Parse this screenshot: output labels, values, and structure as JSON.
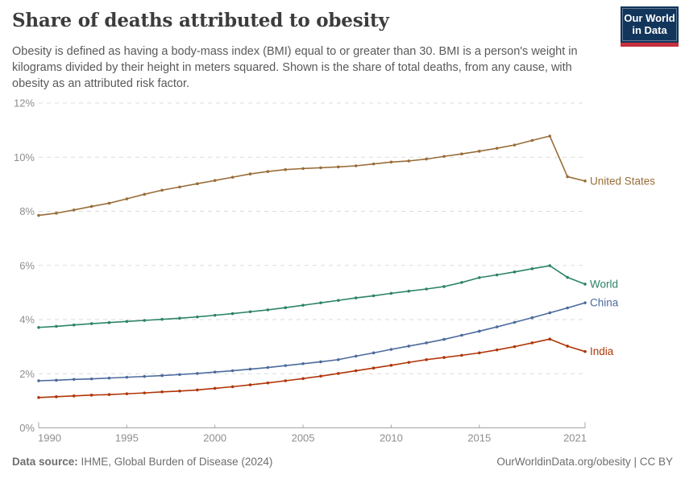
{
  "header": {
    "title": "Share of deaths attributed to obesity",
    "subtitle": "Obesity is defined as having a body-mass index (BMI) equal to or greater than 30. BMI is a person's weight in kilograms divided by their height in meters squared. Shown is the share of total deaths, from any cause, with obesity as an attributed risk factor."
  },
  "logo": {
    "line1": "Our World",
    "line2": "in Data",
    "bg_color": "#12355B",
    "stripe_color": "#C5303C"
  },
  "footer": {
    "source_label": "Data source:",
    "source_text": " IHME, Global Burden of Disease (2024)",
    "right_text": "OurWorldinData.org/obesity | CC BY"
  },
  "chart_data": {
    "type": "line",
    "title": "Share of deaths attributed to obesity",
    "xlabel": "",
    "ylabel": "",
    "xlim": [
      1990,
      2021
    ],
    "ylim": [
      0,
      12
    ],
    "grid": "horizontal-dashed",
    "grid_color": "#dbdbdb",
    "axis_text_color": "#8e8e8e",
    "axis_line_color": "#a5a5a5",
    "legend_position": "line-end-labels-right",
    "xticks": [
      1990,
      1995,
      2000,
      2005,
      2010,
      2015,
      2021
    ],
    "yticks": [
      {
        "value": 0,
        "label": "0%"
      },
      {
        "value": 2,
        "label": "2%"
      },
      {
        "value": 4,
        "label": "4%"
      },
      {
        "value": 6,
        "label": "6%"
      },
      {
        "value": 8,
        "label": "8%"
      },
      {
        "value": 10,
        "label": "10%"
      },
      {
        "value": 12,
        "label": "12%"
      }
    ],
    "x": [
      1990,
      1991,
      1992,
      1993,
      1994,
      1995,
      1996,
      1997,
      1998,
      1999,
      2000,
      2001,
      2002,
      2003,
      2004,
      2005,
      2006,
      2007,
      2008,
      2009,
      2010,
      2011,
      2012,
      2013,
      2014,
      2015,
      2016,
      2017,
      2018,
      2019,
      2020,
      2021
    ],
    "series": [
      {
        "name": "United States",
        "color": "#996D39",
        "values": [
          7.85,
          7.93,
          8.05,
          8.18,
          8.3,
          8.46,
          8.63,
          8.78,
          8.9,
          9.02,
          9.14,
          9.26,
          9.38,
          9.47,
          9.54,
          9.58,
          9.61,
          9.64,
          9.68,
          9.75,
          9.82,
          9.86,
          9.93,
          10.03,
          10.12,
          10.22,
          10.33,
          10.45,
          10.62,
          10.78,
          9.28,
          9.12
        ]
      },
      {
        "name": "World",
        "color": "#2C8465",
        "values": [
          3.71,
          3.75,
          3.8,
          3.85,
          3.89,
          3.93,
          3.97,
          4.01,
          4.05,
          4.1,
          4.16,
          4.22,
          4.29,
          4.36,
          4.44,
          4.53,
          4.62,
          4.71,
          4.8,
          4.88,
          4.97,
          5.05,
          5.13,
          5.22,
          5.37,
          5.55,
          5.65,
          5.76,
          5.88,
          5.99,
          5.56,
          5.31
        ]
      },
      {
        "name": "China",
        "color": "#4C6A9C",
        "values": [
          1.74,
          1.76,
          1.79,
          1.81,
          1.84,
          1.87,
          1.9,
          1.93,
          1.97,
          2.01,
          2.06,
          2.11,
          2.17,
          2.23,
          2.3,
          2.37,
          2.44,
          2.52,
          2.65,
          2.77,
          2.9,
          3.02,
          3.14,
          3.27,
          3.42,
          3.57,
          3.73,
          3.9,
          4.07,
          4.25,
          4.43,
          4.62
        ]
      },
      {
        "name": "India",
        "color": "#B13507",
        "values": [
          1.12,
          1.15,
          1.18,
          1.21,
          1.23,
          1.26,
          1.29,
          1.33,
          1.36,
          1.4,
          1.46,
          1.52,
          1.59,
          1.66,
          1.74,
          1.82,
          1.91,
          2.01,
          2.11,
          2.21,
          2.31,
          2.42,
          2.52,
          2.6,
          2.68,
          2.77,
          2.88,
          3.0,
          3.14,
          3.28,
          3.02,
          2.82
        ]
      }
    ]
  }
}
